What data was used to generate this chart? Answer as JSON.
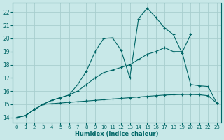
{
  "xlabel": "Humidex (Indice chaleur)",
  "bg_color": "#c8e8e8",
  "grid_color": "#a8cece",
  "line_color": "#006666",
  "xlim": [
    -0.5,
    23.5
  ],
  "ylim": [
    13.6,
    22.7
  ],
  "xticks": [
    0,
    1,
    2,
    3,
    4,
    5,
    6,
    7,
    8,
    9,
    10,
    11,
    12,
    13,
    14,
    15,
    16,
    17,
    18,
    19,
    20,
    21,
    22,
    23
  ],
  "yticks": [
    14,
    15,
    16,
    17,
    18,
    19,
    20,
    21,
    22
  ],
  "line1_x": [
    0,
    1,
    2,
    3,
    4,
    5,
    6,
    7,
    8,
    9,
    10,
    11,
    12,
    13,
    14,
    15,
    16,
    17,
    18,
    19,
    20,
    21,
    22,
    23
  ],
  "line1_y": [
    14.0,
    14.15,
    14.6,
    15.0,
    15.05,
    15.1,
    15.15,
    15.2,
    15.25,
    15.3,
    15.35,
    15.4,
    15.45,
    15.5,
    15.55,
    15.6,
    15.65,
    15.7,
    15.72,
    15.74,
    15.74,
    15.72,
    15.65,
    15.1
  ],
  "line2_x": [
    0,
    1,
    2,
    3,
    4,
    5,
    6,
    7,
    8,
    9,
    10,
    11,
    12,
    13,
    14,
    15,
    16,
    17,
    18,
    19,
    20,
    21,
    22,
    23
  ],
  "line2_y": [
    14.0,
    14.15,
    14.6,
    15.0,
    15.3,
    15.5,
    15.7,
    16.0,
    16.5,
    17.0,
    17.4,
    17.6,
    17.8,
    18.0,
    18.4,
    18.8,
    19.0,
    19.3,
    19.0,
    19.0,
    16.5,
    16.4,
    16.35,
    15.1
  ],
  "line3_x": [
    0,
    1,
    2,
    3,
    4,
    5,
    6,
    7,
    8,
    9,
    10,
    11,
    12,
    13,
    14,
    15,
    16,
    17,
    18,
    19,
    20
  ],
  "line3_y": [
    14.0,
    14.15,
    14.6,
    15.0,
    15.3,
    15.5,
    15.7,
    16.5,
    17.5,
    19.0,
    20.0,
    20.05,
    19.1,
    17.0,
    21.5,
    22.3,
    21.6,
    20.8,
    20.3,
    18.9,
    20.3
  ]
}
